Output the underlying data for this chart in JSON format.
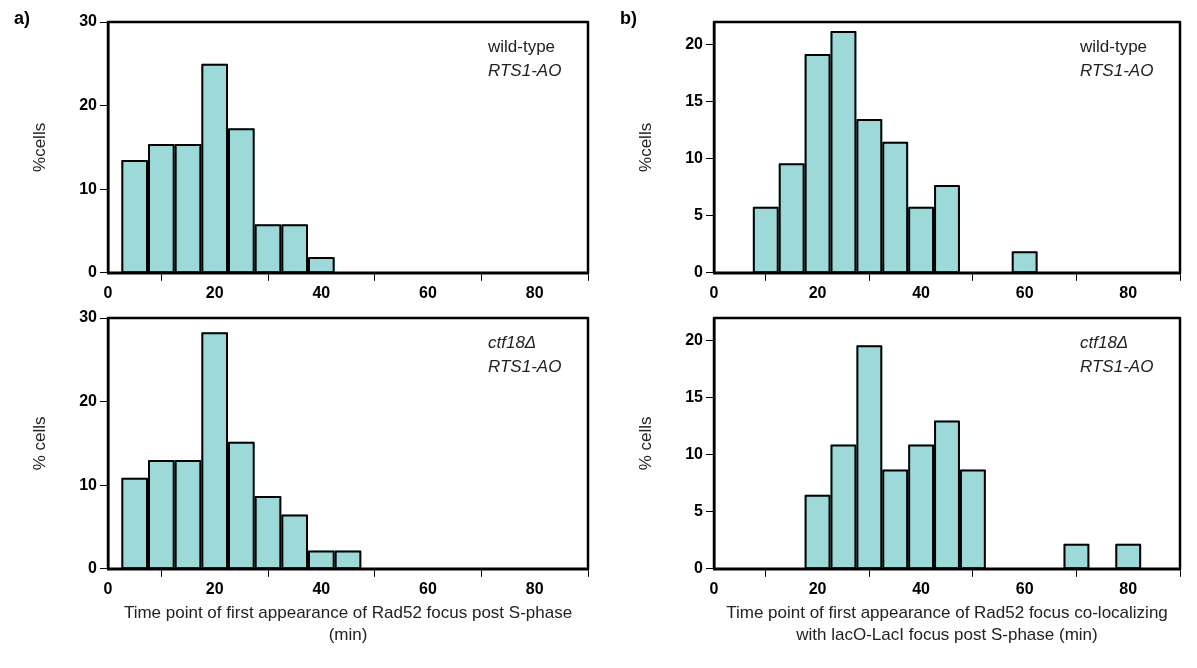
{
  "chart_data": [
    {
      "type": "histogram",
      "title": "a)",
      "ylabel": "%cells",
      "annotations": [
        "wild-type",
        "RTS1-AO"
      ],
      "bins": [
        2.5,
        7.5,
        12.5,
        17.5,
        22.5,
        27.5,
        32.5,
        37.5,
        42.5
      ],
      "values": [
        13.5,
        15.4,
        15.4,
        25,
        17.3,
        5.8,
        5.8,
        1.9
      ],
      "color": "#9ed9d9",
      "xlim": [
        0,
        90
      ],
      "xticks": [
        0,
        20,
        40,
        60,
        80
      ],
      "ylim": [
        0,
        30
      ],
      "yticks": [
        0,
        10,
        20,
        30
      ],
      "grid": false,
      "legend": false
    },
    {
      "type": "histogram",
      "xlabel": "Time point of first appearance of Rad52 focus post S-phase (min)",
      "ylabel": "% cells",
      "annotations": [
        "ctf18Δ",
        "RTS1-AO"
      ],
      "bins": [
        2.5,
        7.5,
        12.5,
        17.5,
        22.5,
        27.5,
        32.5,
        37.5,
        42.5,
        47.5
      ],
      "values": [
        10.9,
        13,
        13,
        28.3,
        15.2,
        8.7,
        6.5,
        2.2,
        2.2
      ],
      "color": "#9ed9d9",
      "xlim": [
        0,
        90
      ],
      "xticks": [
        0,
        20,
        40,
        60,
        80
      ],
      "ylim": [
        0,
        30
      ],
      "yticks": [
        0,
        10,
        20,
        30
      ],
      "grid": false,
      "legend": false
    },
    {
      "type": "histogram",
      "title": "b)",
      "ylabel": "%cells",
      "annotations": [
        "wild-type",
        "RTS1-AO"
      ],
      "bins": [
        7.5,
        12.5,
        17.5,
        22.5,
        27.5,
        32.5,
        37.5,
        42.5,
        47.5,
        52.5,
        57.5,
        62.5
      ],
      "values": [
        5.8,
        9.6,
        19.2,
        21.2,
        13.5,
        11.5,
        5.8,
        7.7,
        0,
        0,
        1.9
      ],
      "color": "#9ed9d9",
      "xlim": [
        0,
        90
      ],
      "xticks": [
        0,
        20,
        40,
        60,
        80
      ],
      "ylim": [
        0,
        22
      ],
      "yticks": [
        0,
        5,
        10,
        15,
        20
      ],
      "grid": false,
      "legend": false
    },
    {
      "type": "histogram",
      "xlabel": "Time point of first appearance of Rad52 focus co-localizing with lacO-LacI focus post S-phase (min)",
      "ylabel": "% cells",
      "annotations": [
        "ctf18Δ",
        "RTS1-AO"
      ],
      "bins": [
        17.5,
        22.5,
        27.5,
        32.5,
        37.5,
        42.5,
        47.5,
        52.5,
        57.5,
        62.5,
        67.5,
        72.5,
        77.5,
        82.5
      ],
      "values": [
        6.5,
        10.9,
        19.6,
        8.7,
        10.9,
        13,
        8.7,
        0,
        0,
        0,
        2.2,
        0,
        2.2
      ],
      "color": "#9ed9d9",
      "xlim": [
        0,
        90
      ],
      "xticks": [
        0,
        20,
        40,
        60,
        80
      ],
      "ylim": [
        0,
        22
      ],
      "yticks": [
        0,
        5,
        10,
        15,
        20
      ],
      "grid": false,
      "legend": false
    }
  ]
}
